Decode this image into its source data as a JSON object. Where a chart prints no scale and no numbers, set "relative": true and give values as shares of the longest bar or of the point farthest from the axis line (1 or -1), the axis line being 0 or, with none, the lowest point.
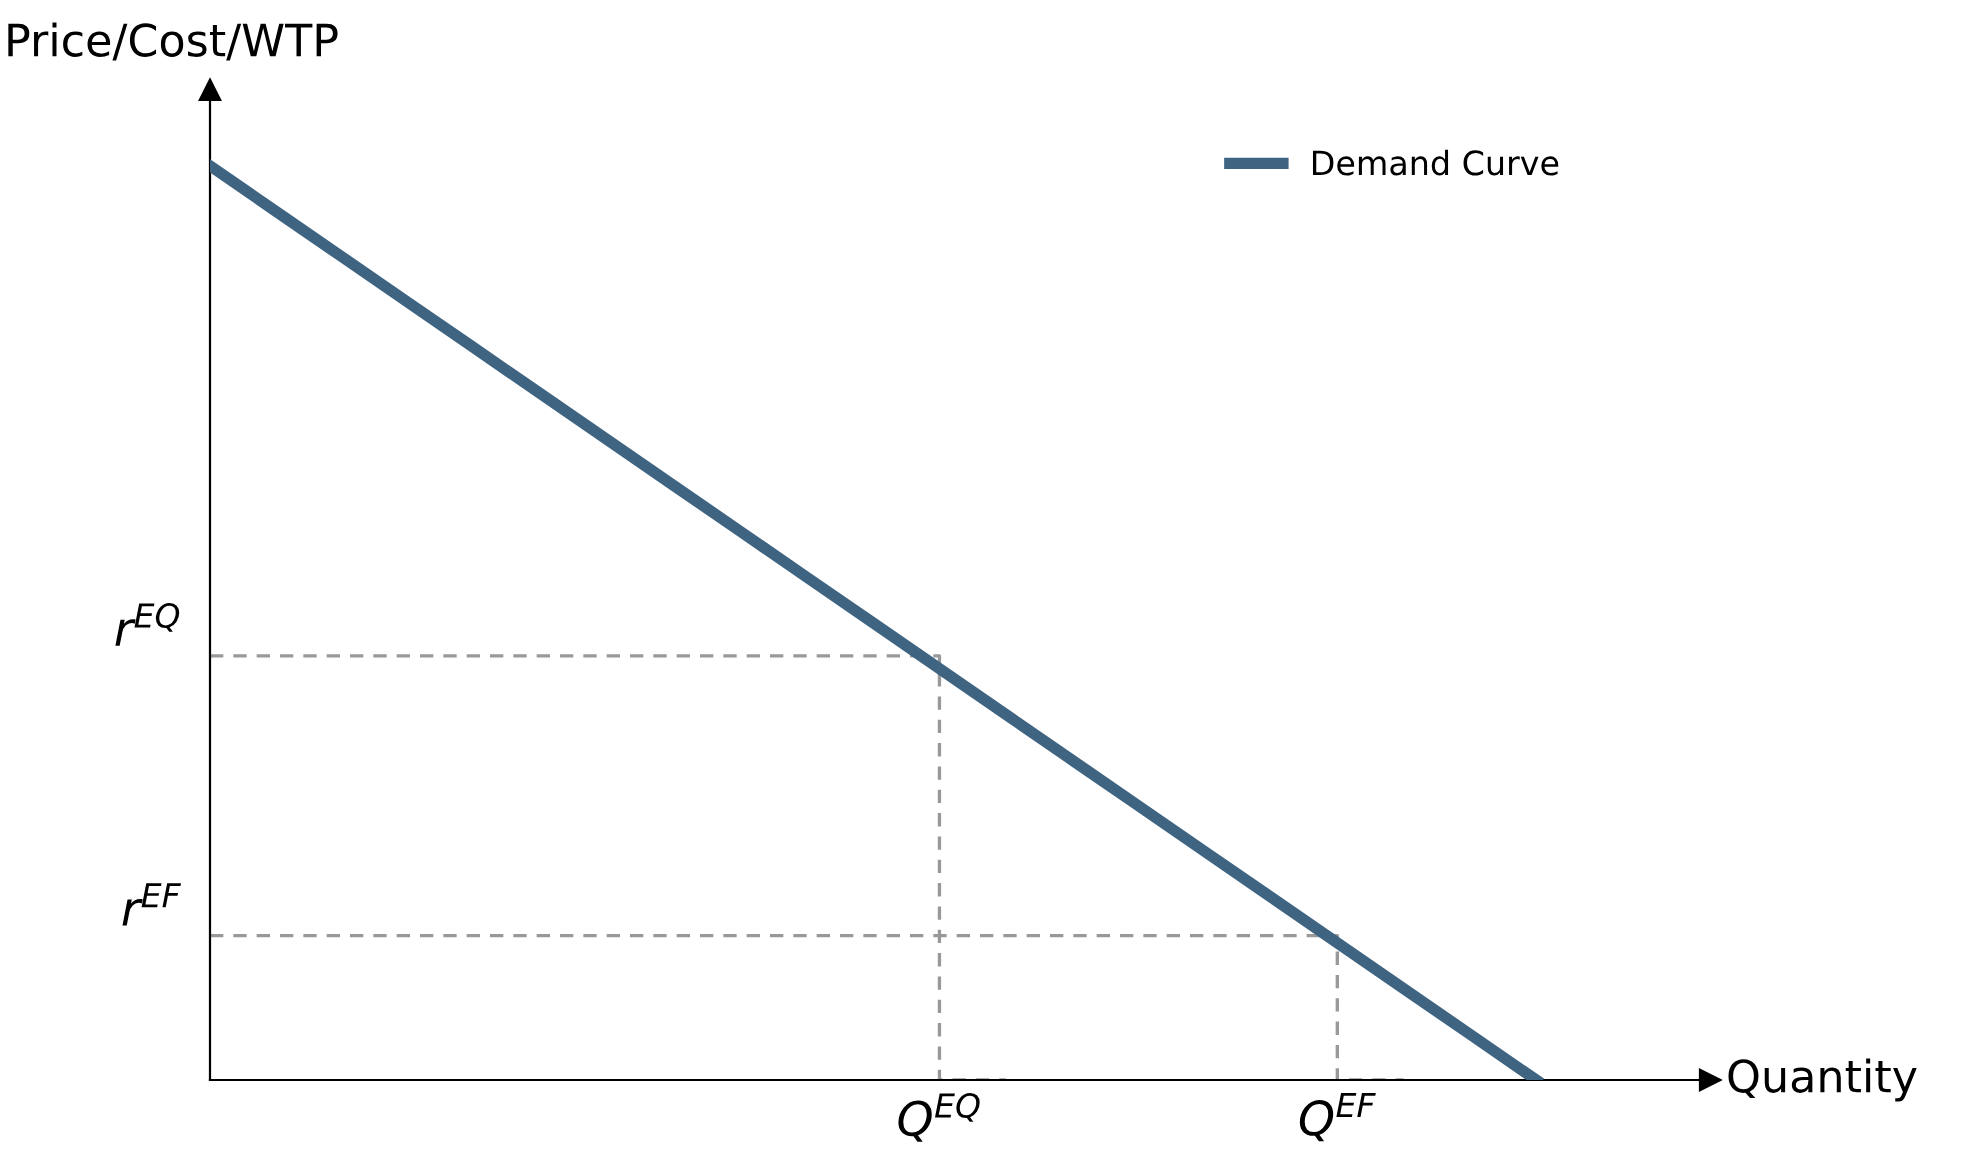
{
  "chart_data": {
    "type": "line",
    "relative": true,
    "xlabel": "Quantity",
    "ylabel": "Price/Cost/WTP",
    "legend": "top right",
    "line_style": "solid",
    "marker": "none",
    "categories": [
      null,
      null,
      null,
      null,
      null,
      null,
      null,
      null,
      null,
      null,
      null,
      "Q$^{EQ}$",
      null,
      null,
      null,
      null,
      null,
      "Q$^{EF}$",
      null,
      null,
      null
    ],
    "series": [
      {
        "name": "Demand Curve",
        "color": "#3f6482",
        "values": [
          1,
          0.95,
          0.9,
          0.85,
          0.8,
          0.75,
          0.7,
          0.65,
          0.6,
          0.55,
          0.5,
          0.45,
          0.4,
          0.35,
          0.3,
          0.25,
          0.2,
          0.15,
          0.1,
          0.05,
          0
        ]
      },
      {
        "type": "step",
        "color": "#999999",
        "line_style": "dashed",
        "values": [
          0.464,
          0.464,
          0.464,
          0.464,
          0.464,
          0.464,
          0.464,
          0.464,
          0.464,
          0.464,
          0.464,
          0.464,
          0,
          null,
          null,
          null,
          null,
          null,
          null,
          null,
          null
        ]
      },
      {
        "type": "step",
        "color": "#999999",
        "line_style": "dashed",
        "values": [
          0.158,
          0.158,
          0.158,
          0.158,
          0.158,
          0.158,
          0.158,
          0.158,
          0.158,
          0.158,
          0.158,
          0.158,
          0.158,
          0.158,
          0.158,
          0.158,
          0.158,
          0.158,
          0,
          null,
          null
        ]
      }
    ],
    "annotations": [
      "r$^{EQ}$",
      "r$^{EF}$"
    ]
  }
}
